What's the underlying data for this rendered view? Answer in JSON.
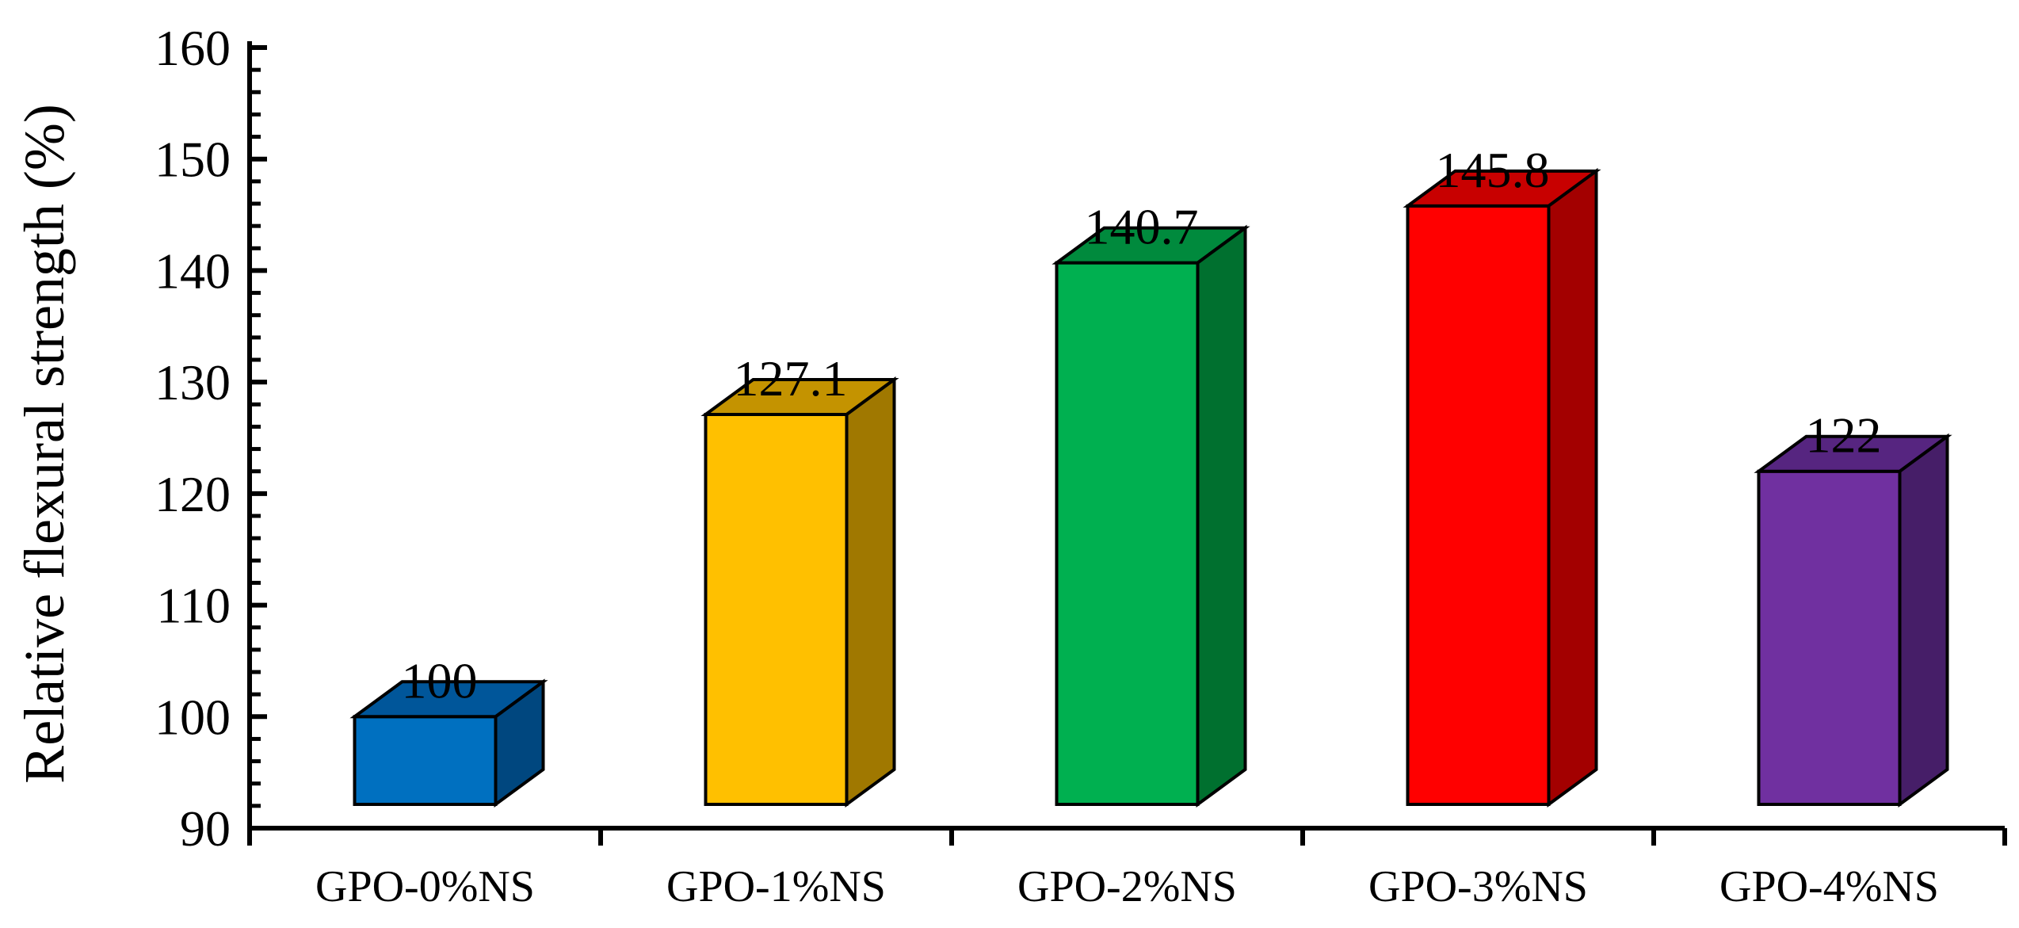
{
  "chart_data": {
    "type": "bar",
    "title": "",
    "xlabel": "",
    "ylabel": "Relative flexural strength (%)",
    "ylim": [
      90,
      160
    ],
    "yticks": [
      90,
      100,
      110,
      120,
      130,
      140,
      150,
      160
    ],
    "grid": false,
    "legend": "none",
    "style": "3d-bars",
    "categories": [
      "GPO-0%NS",
      "GPO-1%NS",
      "GPO-2%NS",
      "GPO-3%NS",
      "GPO-4%NS"
    ],
    "values": [
      100,
      127.1,
      140.7,
      145.8,
      122
    ],
    "value_labels": [
      "100",
      "127.1",
      "140.7",
      "145.8",
      "122"
    ],
    "colors": {
      "front": [
        "#0070C0",
        "#FFC000",
        "#00B050",
        "#FF0000",
        "#7030A0"
      ],
      "top": [
        "#00569A",
        "#C49300",
        "#008A3D",
        "#C80000",
        "#562580"
      ],
      "side": [
        "#00477F",
        "#A07800",
        "#00702F",
        "#A30000",
        "#461E68"
      ]
    }
  }
}
